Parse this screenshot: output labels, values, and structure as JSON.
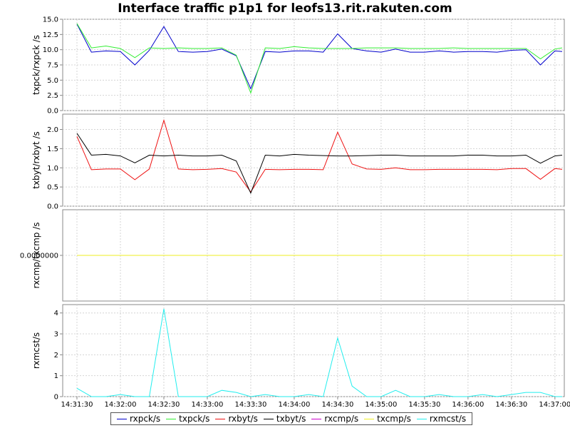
{
  "chart_data": {
    "type": "line",
    "title": "Interface traffic p1p1 for leofs13.rit.rakuten.com",
    "x_tick_labels": [
      "14:31:30",
      "14:32:00",
      "14:32:30",
      "14:33:00",
      "14:33:30",
      "14:34:00",
      "14:34:30",
      "14:35:00",
      "14:35:30",
      "14:36:00",
      "14:36:30",
      "14:37:00"
    ],
    "x_range": [
      "14:31:30",
      "14:37:05"
    ],
    "x": [
      "14:31:30",
      "14:31:40",
      "14:31:50",
      "14:32:00",
      "14:32:10",
      "14:32:20",
      "14:32:30",
      "14:32:40",
      "14:32:50",
      "14:33:00",
      "14:33:10",
      "14:33:20",
      "14:33:30",
      "14:33:40",
      "14:33:50",
      "14:34:00",
      "14:34:10",
      "14:34:20",
      "14:34:30",
      "14:34:40",
      "14:34:50",
      "14:35:00",
      "14:35:10",
      "14:35:20",
      "14:35:30",
      "14:35:40",
      "14:35:50",
      "14:36:00",
      "14:36:10",
      "14:36:20",
      "14:36:30",
      "14:36:40",
      "14:36:50",
      "14:37:00",
      "14:37:05"
    ],
    "grid": true,
    "legend_position": "bottom",
    "panels": [
      {
        "ylabel": "txpck/rxpck /s",
        "ylim": [
          0,
          15
        ],
        "y_ticks": [
          "0.0",
          "2.5",
          "5.0",
          "7.5",
          "10.0",
          "12.5",
          "15.0"
        ],
        "y_tick_values": [
          0,
          2.5,
          5,
          7.5,
          10,
          12.5,
          15
        ],
        "series": [
          {
            "name": "rxpck/s",
            "color": "#0000cc",
            "values": [
              14.2,
              9.6,
              9.8,
              9.7,
              7.5,
              9.9,
              13.8,
              9.7,
              9.6,
              9.7,
              10.1,
              9.0,
              3.6,
              9.7,
              9.6,
              9.8,
              9.8,
              9.6,
              12.6,
              10.2,
              9.8,
              9.6,
              10.1,
              9.6,
              9.6,
              9.8,
              9.6,
              9.7,
              9.7,
              9.6,
              9.9,
              10.0,
              7.5,
              9.8,
              9.7
            ]
          },
          {
            "name": "txpck/s",
            "color": "#33ee33",
            "values": [
              14.3,
              10.3,
              10.6,
              10.2,
              8.7,
              10.3,
              10.2,
              10.3,
              10.2,
              10.2,
              10.3,
              9.1,
              2.9,
              10.3,
              10.2,
              10.5,
              10.3,
              10.2,
              10.2,
              10.2,
              10.3,
              10.3,
              10.3,
              10.2,
              10.2,
              10.2,
              10.3,
              10.2,
              10.2,
              10.2,
              10.2,
              10.2,
              8.5,
              10.1,
              10.3
            ]
          }
        ]
      },
      {
        "ylabel": "txbyt/rxbyt /s",
        "ylim": [
          0,
          2.4
        ],
        "y_ticks": [
          "0.0",
          "0.5",
          "1.0",
          "1.5",
          "2.0"
        ],
        "y_tick_values": [
          0,
          0.5,
          1.0,
          1.5,
          2.0
        ],
        "series": [
          {
            "name": "rxbyt/s",
            "color": "#ee1111",
            "values": [
              1.82,
              0.95,
              0.97,
              0.97,
              0.69,
              0.97,
              2.24,
              0.97,
              0.95,
              0.96,
              0.98,
              0.89,
              0.37,
              0.96,
              0.95,
              0.96,
              0.96,
              0.95,
              1.93,
              1.1,
              0.97,
              0.96,
              1.0,
              0.95,
              0.95,
              0.96,
              0.96,
              0.96,
              0.96,
              0.95,
              0.98,
              0.98,
              0.7,
              0.98,
              0.96
            ]
          },
          {
            "name": "txbyt/s",
            "color": "#000000",
            "values": [
              1.9,
              1.33,
              1.35,
              1.31,
              1.13,
              1.33,
              1.31,
              1.33,
              1.31,
              1.31,
              1.33,
              1.18,
              0.34,
              1.33,
              1.31,
              1.35,
              1.33,
              1.32,
              1.31,
              1.31,
              1.32,
              1.33,
              1.33,
              1.31,
              1.31,
              1.31,
              1.31,
              1.33,
              1.33,
              1.31,
              1.31,
              1.33,
              1.12,
              1.31,
              1.33
            ]
          }
        ]
      },
      {
        "ylabel": "rxcmp/txcmp /s",
        "ylim": [
          -1,
          1
        ],
        "y_ticks": [
          "0.0000000"
        ],
        "y_tick_values": [
          0
        ],
        "series": [
          {
            "name": "rxcmp/s",
            "color": "#cc00cc",
            "values": [
              0,
              0,
              0,
              0,
              0,
              0,
              0,
              0,
              0,
              0,
              0,
              0,
              0,
              0,
              0,
              0,
              0,
              0,
              0,
              0,
              0,
              0,
              0,
              0,
              0,
              0,
              0,
              0,
              0,
              0,
              0,
              0,
              0,
              0,
              0
            ]
          },
          {
            "name": "txcmp/s",
            "color": "#eeee22",
            "values": [
              0,
              0,
              0,
              0,
              0,
              0,
              0,
              0,
              0,
              0,
              0,
              0,
              0,
              0,
              0,
              0,
              0,
              0,
              0,
              0,
              0,
              0,
              0,
              0,
              0,
              0,
              0,
              0,
              0,
              0,
              0,
              0,
              0,
              0,
              0
            ]
          }
        ]
      },
      {
        "ylabel": "rxmcst/s",
        "ylim": [
          0,
          4.4
        ],
        "y_ticks": [
          "0",
          "1",
          "2",
          "3",
          "4"
        ],
        "y_tick_values": [
          0,
          1,
          2,
          3,
          4
        ],
        "series": [
          {
            "name": "rxmcst/s",
            "color": "#22eeee",
            "values": [
              0.4,
              0,
              0,
              0.1,
              0,
              0,
              4.2,
              0,
              0,
              0,
              0.3,
              0.2,
              0,
              0.1,
              0,
              0,
              0.1,
              0,
              2.8,
              0.5,
              0,
              0,
              0.3,
              0,
              0,
              0.1,
              0,
              0,
              0.1,
              0,
              0.1,
              0.2,
              0.2,
              0,
              0
            ]
          }
        ]
      }
    ],
    "legend": [
      {
        "name": "rxpck/s",
        "color": "#0000cc"
      },
      {
        "name": "txpck/s",
        "color": "#33ee33"
      },
      {
        "name": "rxbyt/s",
        "color": "#ee1111"
      },
      {
        "name": "txbyt/s",
        "color": "#000000"
      },
      {
        "name": "rxcmp/s",
        "color": "#cc00cc"
      },
      {
        "name": "txcmp/s",
        "color": "#eeee22"
      },
      {
        "name": "rxmcst/s",
        "color": "#22eeee"
      }
    ]
  }
}
